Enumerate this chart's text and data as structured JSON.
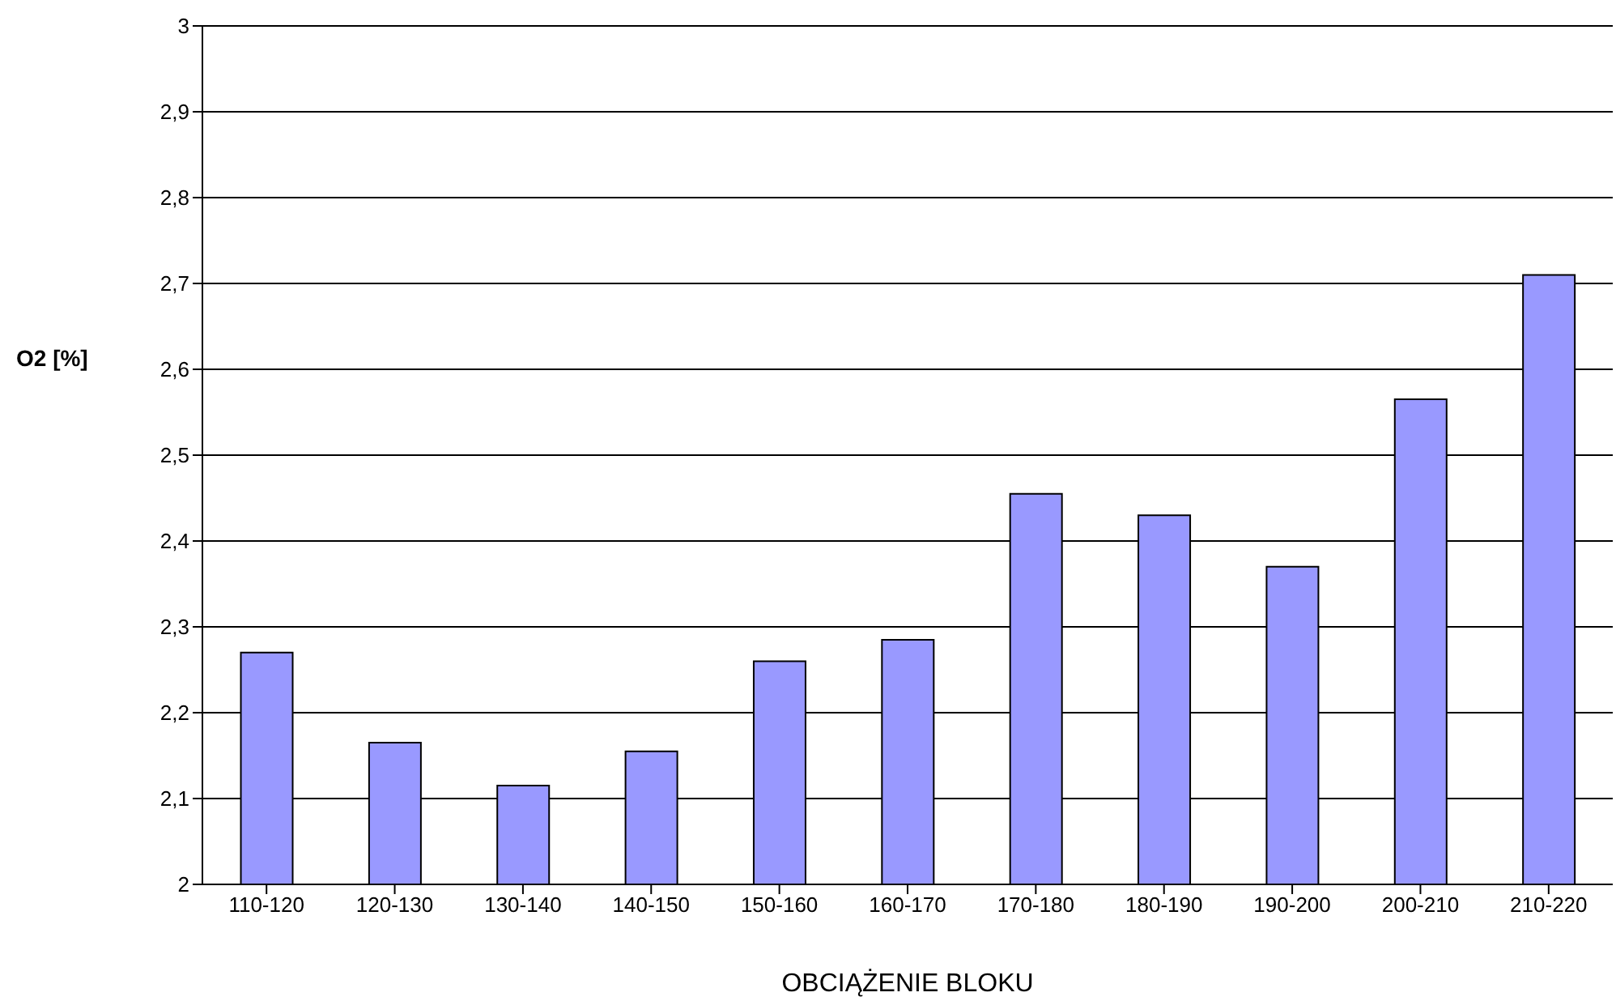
{
  "chart_data": {
    "type": "bar",
    "xlabel": "OBCIĄŻENIE BLOKU",
    "ylabel": "O2 [%]",
    "categories": [
      "110-120",
      "120-130",
      "130-140",
      "140-150",
      "150-160",
      "160-170",
      "170-180",
      "180-190",
      "190-200",
      "200-210",
      "210-220"
    ],
    "values": [
      2.27,
      2.165,
      2.115,
      2.155,
      2.26,
      2.285,
      2.455,
      2.43,
      2.37,
      2.565,
      2.71
    ],
    "color": "#9999ff",
    "ylim": [
      2,
      3
    ],
    "yticks": [
      2,
      {
        "value": 2.1,
        "label": "2,1"
      },
      {
        "value": 2.2,
        "label": "2,2"
      },
      {
        "value": 2.3,
        "label": "2,3"
      },
      {
        "value": 2.4,
        "label": "2,4"
      },
      {
        "value": 2.5,
        "label": "2,5"
      },
      {
        "value": 2.6,
        "label": "2,6"
      },
      {
        "value": 2.7,
        "label": "2,7"
      },
      {
        "value": 2.8,
        "label": "2,8"
      },
      {
        "value": 2.9,
        "label": "2,9"
      },
      3
    ],
    "grid": "y",
    "legend": false
  }
}
